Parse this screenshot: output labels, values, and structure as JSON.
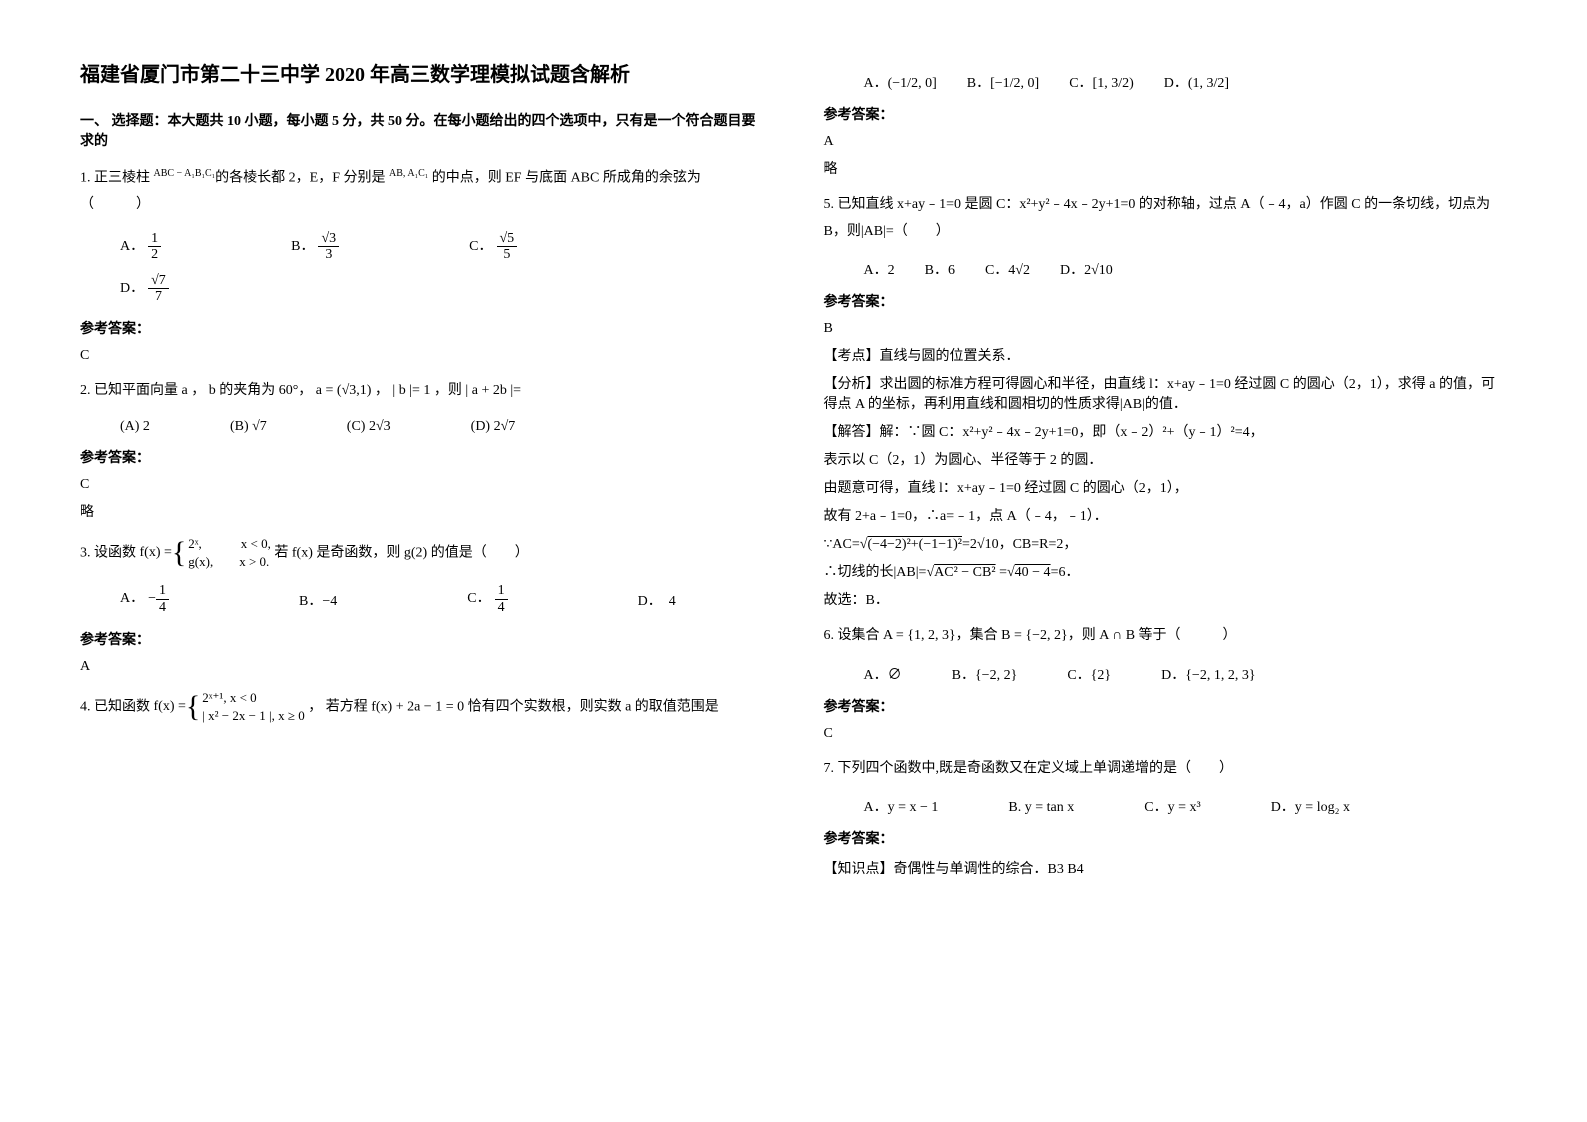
{
  "title": "福建省厦门市第二十三中学 2020 年高三数学理模拟试题含解析",
  "section1_header": "一、 选择题：本大题共 10 小题，每小题 5 分，共 50 分。在每小题给出的四个选项中，只有是一个符合题目要求的",
  "q1": {
    "text_a": "1. 正三棱柱 ",
    "expr": "ABC − A₁B₁C₁",
    "text_b": "的各棱长都 2，E，F 分别是 ",
    "expr2": "AB, A₁C₁",
    "text_c": " 的中点，则 EF 与底面 ABC 所成角的余弦为　　　　　　　　　　　（　　　）",
    "optA_label": "A．",
    "optA_num": "1",
    "optA_den": "2",
    "optB_label": "B．",
    "optB_num": "√3",
    "optB_den": "3",
    "optC_label": "C．",
    "optC_num": "√5",
    "optC_den": "5",
    "optD_label": "D．",
    "optD_num": "√7",
    "optD_den": "7",
    "ans_label": "参考答案：",
    "ans": "C"
  },
  "q2": {
    "text": "2. 已知平面向量 a ， b 的夹角为 60°， a = (√3,1) ， | b |= 1 ，则 | a + 2b |=",
    "optA": "(A) 2",
    "optB": "(B) √7",
    "optC": "(C) 2√3",
    "optD": "(D) 2√7",
    "ans_label": "参考答案：",
    "ans": "C",
    "note": "略"
  },
  "q3": {
    "lead": "3. 设函数 ",
    "fx_label": "f(x) = ",
    "case1": "2ˣ,　　　x < 0,",
    "case2": "g(x),　　x > 0.",
    "tail": " 若 f(x) 是奇函数，则 g(2) 的值是（　　）",
    "optA_label": "A．",
    "optA_num": "1",
    "optA_den": "4",
    "optA_neg": "−",
    "optB": "B．−4",
    "optC_label": "C．",
    "optC_num": "1",
    "optC_den": "4",
    "optD": "D．　4",
    "ans_label": "参考答案：",
    "ans": "A"
  },
  "q4": {
    "lead": "4. 已知函数 ",
    "fx_label": "f(x) = ",
    "case1": "2ˣ⁺¹, x < 0",
    "case2": "| x² − 2x − 1 |, x ≥ 0",
    "tail": "， 若方程 f(x) + 2a − 1 = 0 恰有四个实数根，则实数 a 的取值范围是",
    "optA_label": "A．",
    "optA": "(−1/2, 0]",
    "optB_label": "B．",
    "optB": "[−1/2, 0]",
    "optC_label": "C．",
    "optC": "[1, 3/2)",
    "optD_label": "D．",
    "optD": "(1, 3/2]",
    "ans_label": "参考答案：",
    "ans": "A",
    "note": "略"
  },
  "q5": {
    "text": "5. 已知直线 x+ay﹣1=0 是圆 C：x²+y²﹣4x﹣2y+1=0 的对称轴，过点 A（﹣4，a）作圆 C 的一条切线，切点为 B，则|AB|=（　　）",
    "optA": "A．2",
    "optB": "B．6",
    "optC": "C．4√2",
    "optD": "D．2√10",
    "ans_label": "参考答案：",
    "ans": "B",
    "kd": "【考点】直线与圆的位置关系．",
    "fx": "【分析】求出圆的标准方程可得圆心和半径，由直线 l：x+ay﹣1=0 经过圆 C 的圆心（2，1），求得 a 的值，可得点 A 的坐标，再利用直线和圆相切的性质求得|AB|的值．",
    "jd_lead": "【解答】解：∵圆 C：x²+y²﹣4x﹣2y+1=0，即（x﹣2）²+（y﹣1）²=4，",
    "l1": "表示以 C（2，1）为圆心、半径等于 2 的圆．",
    "l2": "由题意可得，直线 l：x+ay﹣1=0 经过圆 C 的圆心（2，1），",
    "l3": "故有 2+a﹣1=0，∴a=﹣1，点 A（﹣4，﹣1）．",
    "l4a": "∵AC=",
    "l4root": "(−4−2)²+(−1−1)²",
    "l4b": "=2√10，CB=R=2，",
    "l5a": "∴切线的长|AB|=",
    "l5root": "AC² − CB²",
    "l5b": " =",
    "l5root2": "40 − 4",
    "l5c": "=6．",
    "l6": "故选：B．"
  },
  "q6": {
    "text": "6. 设集合 A = {1, 2, 3}，集合 B = {−2, 2}，则 A ∩ B 等于（　　　）",
    "optA": "A．∅",
    "optB": "B．{−2, 2}",
    "optC": "C．{2}",
    "optD": "D．{−2, 1, 2, 3}",
    "ans_label": "参考答案：",
    "ans": "C"
  },
  "q7": {
    "text": "7. 下列四个函数中,既是奇函数又在定义域上单调递增的是（　　）",
    "optA": "A．y = x − 1",
    "optB": "B. y = tan x",
    "optC": "C．y = x³",
    "optD": "D．y = log₂ x",
    "ans_label": "参考答案：",
    "kp": "【知识点】奇偶性与单调性的综合．B3 B4"
  }
}
